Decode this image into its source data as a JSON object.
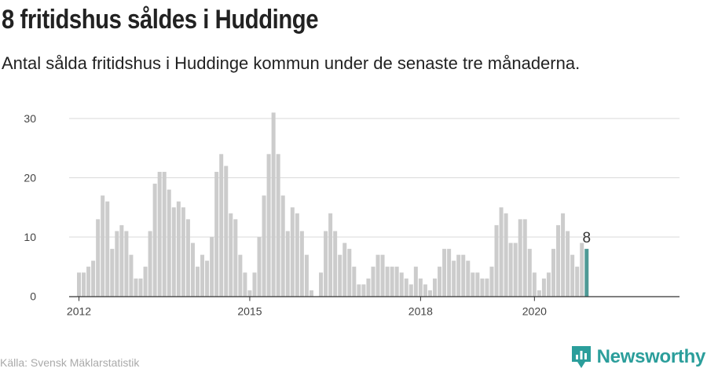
{
  "title": "8 fritidshus såldes i Huddinge",
  "subtitle": "Antal sålda fritidshus i Huddinge kommun under de senaste tre månaderna.",
  "source": "Källa: Svensk Mäklarstatistik",
  "brand": {
    "name": "Newsworthy",
    "icon": "newsworthy-logo-icon",
    "color": "#2b9e9b"
  },
  "colors": {
    "bar": "#cccccc",
    "highlight": "#4e9a96",
    "grid": "#d9d9d9",
    "axis": "#333333"
  },
  "chart_data": {
    "type": "bar",
    "x_tick_labels": [
      "2012",
      "2015",
      "2018",
      "2020"
    ],
    "y_tick_labels": [
      "0",
      "10",
      "20",
      "30"
    ],
    "ylim": [
      0,
      32
    ],
    "grid": true,
    "highlight_label": "8",
    "values": [
      4,
      4,
      5,
      6,
      13,
      17,
      16,
      8,
      11,
      12,
      11,
      7,
      3,
      3,
      5,
      11,
      19,
      21,
      21,
      18,
      15,
      16,
      15,
      13,
      9,
      5,
      7,
      6,
      10,
      21,
      24,
      22,
      14,
      13,
      7,
      4,
      1,
      4,
      10,
      17,
      24,
      31,
      24,
      17,
      11,
      15,
      14,
      11,
      7,
      1,
      0,
      4,
      11,
      14,
      11,
      7,
      9,
      8,
      5,
      2,
      2,
      3,
      5,
      7,
      7,
      5,
      5,
      5,
      4,
      3,
      2,
      5,
      3,
      2,
      1,
      3,
      5,
      8,
      8,
      6,
      7,
      7,
      6,
      4,
      4,
      3,
      3,
      5,
      12,
      15,
      14,
      9,
      9,
      13,
      13,
      8,
      4,
      1,
      3,
      4,
      8,
      12,
      14,
      11,
      7,
      5,
      9,
      8
    ]
  }
}
